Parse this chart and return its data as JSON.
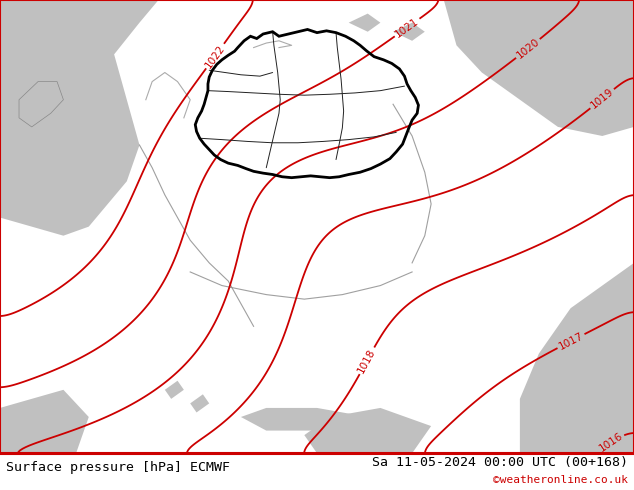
{
  "title_left": "Surface pressure [hPa] ECMWF",
  "title_right": "Sa 11-05-2024 00:00 UTC (00+168)",
  "credit": "©weatheronline.co.uk",
  "bg_green": "#b5e878",
  "bg_gray": "#c0c0c0",
  "contour_color": "#cc0000",
  "germany_color": "#000000",
  "neighbor_color": "#888888",
  "footer_text_color": "#000000",
  "credit_color": "#cc0000",
  "title_fontsize": 9.5,
  "credit_fontsize": 8,
  "label_fontsize": 7.5,
  "contour_levels": [
    1016,
    1017,
    1018,
    1019,
    1020,
    1021,
    1022
  ],
  "contour_linewidth": 1.3,
  "germany_border_linewidth": 2.0,
  "neighbor_linewidth": 0.8
}
